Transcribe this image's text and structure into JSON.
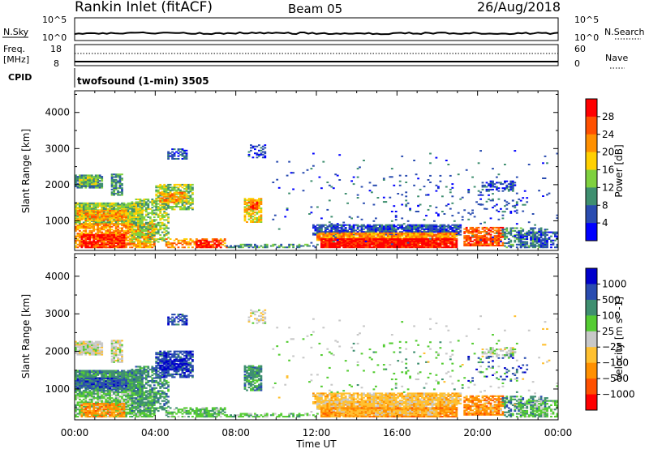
{
  "header": {
    "site": "Rankin Inlet (fitACF)",
    "beam": "Beam 05",
    "date": "26/Aug/2018"
  },
  "top_panel": {
    "nsky_label": "N.Sky",
    "nsky_ticks": [
      "10^5",
      "10^0"
    ],
    "nsearch_label": "N.Search",
    "nsearch_ticks": [
      "10^5",
      "10^0"
    ],
    "freq_label": "Freq.",
    "freq_unit": "[MHz]",
    "freq_ticks": [
      "18",
      "8"
    ],
    "nave_label": "Nave",
    "nave_ticks": [
      "60",
      "0"
    ],
    "cpid_label": "CPID",
    "cpid_text": "twofsound (1-min) 3505"
  },
  "colors": {
    "power": [
      "#0000ff",
      "#2a4cb0",
      "#3f8f70",
      "#7fd13f",
      "#ffd000",
      "#ff9000",
      "#ff5000",
      "#ff0000"
    ],
    "velocity": [
      "#ff0000",
      "#ff5000",
      "#ff9000",
      "#ffc030",
      "#c8c8c8",
      "#55cc33",
      "#3f8f70",
      "#2a4cb0",
      "#0000cc"
    ]
  },
  "chart_data": [
    {
      "type": "heatmap",
      "parameter": "Power",
      "ylabel": "Slant Range [km]",
      "xlabel": "",
      "y_ticks": [
        1000,
        2000,
        3000,
        4000
      ],
      "ylim": [
        180,
        4600
      ],
      "x_ticks": [
        "00:00",
        "04:00",
        "08:00",
        "12:00",
        "16:00",
        "20:00",
        "00:00"
      ],
      "xlim_hours": [
        0,
        24
      ],
      "colorbar_label": "Power [dB]",
      "colorbar_ticks": [
        "28",
        "24",
        "20",
        "16",
        "12",
        "8",
        "4"
      ],
      "colorbar_range": [
        0,
        32
      ]
    },
    {
      "type": "heatmap",
      "parameter": "Velocity",
      "ylabel": "Slant Range [km]",
      "xlabel": "Time UT",
      "y_ticks": [
        1000,
        2000,
        3000,
        4000
      ],
      "ylim": [
        180,
        4600
      ],
      "x_ticks": [
        "00:00",
        "04:00",
        "08:00",
        "12:00",
        "16:00",
        "20:00",
        "00:00"
      ],
      "xlim_hours": [
        0,
        24
      ],
      "colorbar_label": "Velocity [m s^-1]",
      "colorbar_ticks": [
        "1000",
        "500",
        "100",
        "25",
        "−25",
        "−100",
        "−500",
        "−1000"
      ]
    }
  ]
}
